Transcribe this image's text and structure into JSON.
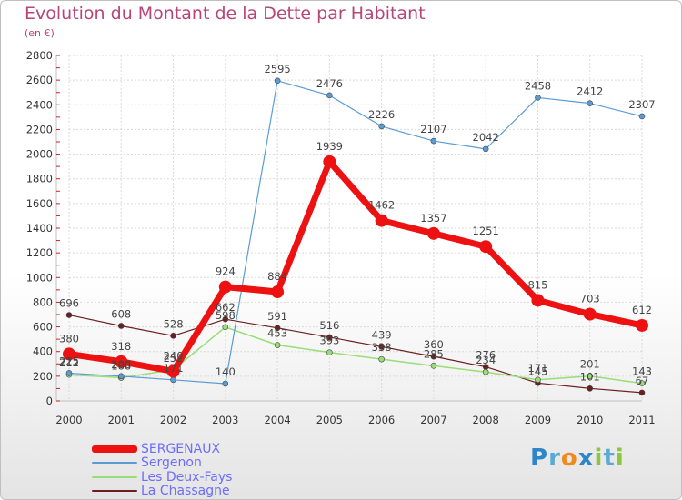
{
  "header": {
    "title": "Evolution du Montant de la Dette par Habitant",
    "unit": "(en €)"
  },
  "brand": {
    "letters": [
      {
        "char": "P",
        "color": "#2e86c8"
      },
      {
        "char": "r",
        "color": "#5aa9d6"
      },
      {
        "char": "o",
        "color": "#f08a1c"
      },
      {
        "char": "x",
        "color": "#2e86c8"
      },
      {
        "char": "i",
        "color": "#8cc63f"
      },
      {
        "char": "t",
        "color": "#5aa9d6"
      },
      {
        "char": "i",
        "color": "#8cc63f"
      }
    ]
  },
  "chart_data": {
    "type": "line",
    "title": "Evolution du Montant de la Dette par Habitant",
    "subtitle": "(en €)",
    "xlabel": "",
    "ylabel": "",
    "categories": [
      "2000",
      "2001",
      "2002",
      "2003",
      "2004",
      "2005",
      "2006",
      "2007",
      "2008",
      "2009",
      "2010",
      "2011"
    ],
    "ylim": [
      0,
      2800
    ],
    "yticks": [
      0,
      200,
      400,
      600,
      800,
      1000,
      1200,
      1400,
      1600,
      1800,
      2000,
      2200,
      2400,
      2600,
      2800
    ],
    "grid": true,
    "legend_position": "bottom-left",
    "series": [
      {
        "name": "La Chassagne",
        "color": "#6b1f1f",
        "width": 1.2,
        "marker": 3,
        "values": [
          696,
          608,
          528,
          662,
          591,
          516,
          439,
          360,
          276,
          145,
          101,
          67
        ],
        "labels": [
          "696",
          "608",
          "528",
          "662",
          "591",
          "516",
          "439",
          "360",
          "276",
          "145",
          "101",
          "67"
        ]
      },
      {
        "name": "Les Deux-Fays",
        "color": "#99dd77",
        "width": 1.5,
        "marker": 3,
        "values": [
          212,
          188,
          252,
          598,
          453,
          393,
          338,
          285,
          234,
          171,
          201,
          143
        ],
        "labels": [
          "212",
          "188",
          "252",
          "598",
          "453",
          "393",
          "338",
          "285",
          "234",
          "171",
          "201",
          "143"
        ]
      },
      {
        "name": "Sergenon",
        "color": "#5b9bd5",
        "width": 1.2,
        "marker": 3,
        "values": [
          225,
          200,
          171,
          140,
          2595,
          2476,
          2226,
          2107,
          2042,
          2458,
          2412,
          2307
        ],
        "labels": [
          "225",
          "200",
          "171",
          "140",
          "2595",
          "2476",
          "2226",
          "2107",
          "2042",
          "2458",
          "2412",
          "2307"
        ]
      },
      {
        "name": "SERGENAUX",
        "color": "#ee1111",
        "width": 7,
        "marker": 7,
        "values": [
          380,
          318,
          240,
          924,
          884,
          1939,
          1462,
          1357,
          1251,
          815,
          703,
          612
        ],
        "labels": [
          "380",
          "318",
          "240",
          "924",
          "884",
          "1939",
          "1462",
          "1357",
          "1251",
          "815",
          "703",
          "612"
        ]
      }
    ],
    "legend_order": [
      "SERGENAUX",
      "Sergenon",
      "Les Deux-Fays",
      "La Chassagne"
    ]
  }
}
